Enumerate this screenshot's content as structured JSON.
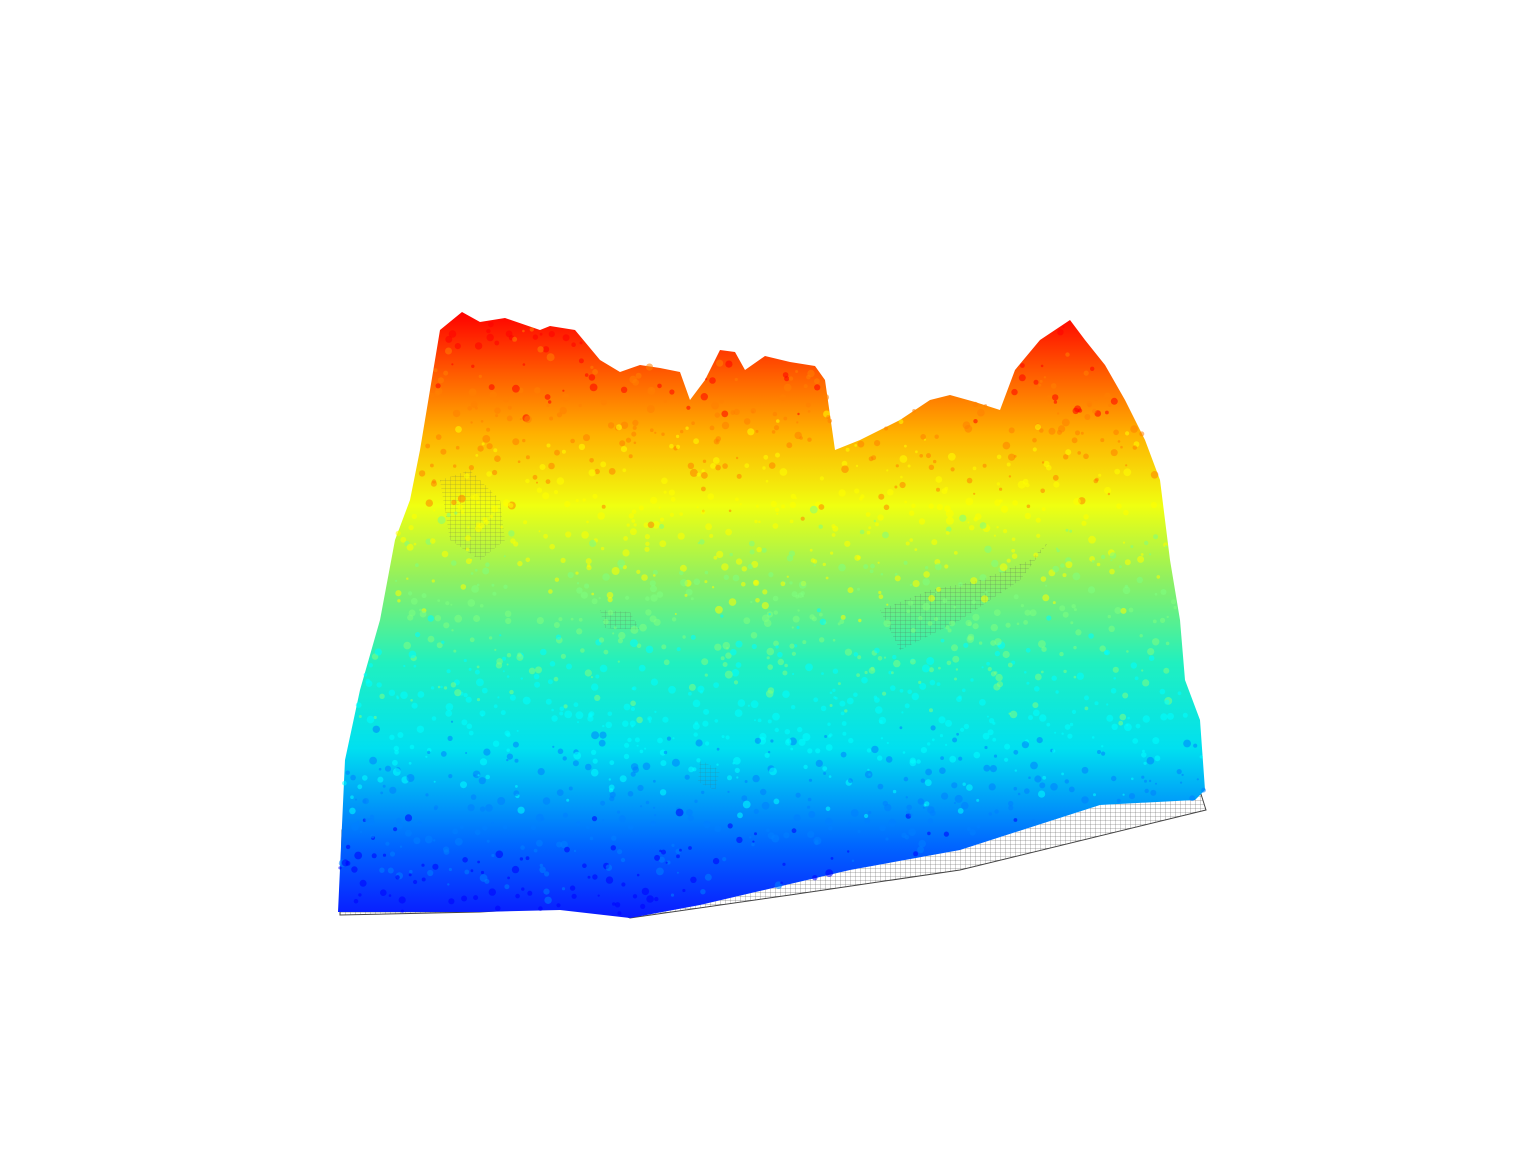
{
  "scene": {
    "subject": "lidar-point-cloud-forest-canopy",
    "render_style": "height-colored point cloud over wireframe ground mesh",
    "colormap": {
      "name": "jet",
      "stops": [
        "#0000ff",
        "#0080ff",
        "#00ffff",
        "#80ff80",
        "#ffff00",
        "#ff8000",
        "#ff0000"
      ]
    },
    "background_color": "#ffffff",
    "mesh_color": "#555555"
  }
}
